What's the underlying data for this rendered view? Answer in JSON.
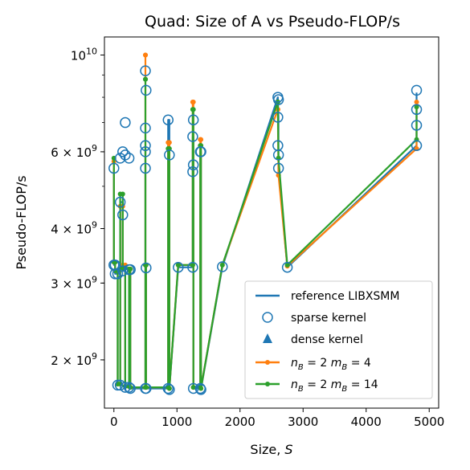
{
  "chart_data": {
    "type": "line",
    "title": "Quad: Size of A vs Pseudo-FLOP/s",
    "xlabel": "Size, S",
    "ylabel": "Pseudo-FLOP/s",
    "xlim": [
      -150,
      5150
    ],
    "ylim": [
      1550000000.0,
      11000000000.0
    ],
    "yscale": "log",
    "x_ticks": [
      0,
      1000,
      2000,
      3000,
      4000,
      5000
    ],
    "x_tick_labels": [
      "0",
      "1000",
      "2000",
      "3000",
      "4000",
      "5000"
    ],
    "y_ticks": [
      2000000000.0,
      3000000000.0,
      4000000000.0,
      6000000000.0,
      10000000000.0
    ],
    "y_tick_labels": [
      "2 × 10^9",
      "3 × 10^9",
      "4 × 10^9",
      "6 × 10^9",
      "10^10"
    ],
    "legend_position": "lower-right",
    "grid": false,
    "series": [
      {
        "name": "reference LIBXSMM",
        "style": "line",
        "color": "#1f77b4",
        "x": [
          0,
          0,
          20,
          20,
          60,
          60,
          100,
          100,
          140,
          140,
          180,
          180,
          240,
          240,
          260,
          260,
          500,
          500,
          500,
          500,
          510,
          510,
          860,
          860,
          880,
          880,
          1020,
          1250,
          1250,
          1260,
          1260,
          1370,
          1370,
          1380,
          1380,
          1720,
          2600,
          2600,
          2610,
          2610,
          2750,
          4800,
          4800
        ],
        "y": [
          5500000000.0,
          3300000000.0,
          3300000000.0,
          3150000000.0,
          3150000000.0,
          1750000000.0,
          1750000000.0,
          4600000000.0,
          4600000000.0,
          3200000000.0,
          3200000000.0,
          1730000000.0,
          1730000000.0,
          3220000000.0,
          3220000000.0,
          1720000000.0,
          1720000000.0,
          6200000000.0,
          6200000000.0,
          3250000000.0,
          3250000000.0,
          1720000000.0,
          1720000000.0,
          7100000000.0,
          7100000000.0,
          1710000000.0,
          3260000000.0,
          3260000000.0,
          6500000000.0,
          6500000000.0,
          1720000000.0,
          1720000000.0,
          6000000000.0,
          6000000000.0,
          1710000000.0,
          3270000000.0,
          8000000000.0,
          8000000000.0,
          7200000000.0,
          5500000000.0,
          3260000000.0,
          6200000000.0,
          8200000000.0
        ]
      },
      {
        "name": "sparse kernel",
        "style": "open-circle",
        "color": "#1f77b4",
        "x": [
          0,
          0,
          20,
          20,
          60,
          60,
          100,
          100,
          100,
          140,
          140,
          140,
          180,
          180,
          180,
          240,
          240,
          240,
          260,
          260,
          500,
          500,
          500,
          500,
          500,
          500,
          510,
          510,
          510,
          860,
          860,
          880,
          880,
          1020,
          1250,
          1250,
          1250,
          1260,
          1260,
          1260,
          1370,
          1370,
          1380,
          1380,
          1720,
          2600,
          2600,
          2600,
          2610,
          2610,
          2610,
          2750,
          4800,
          4800,
          4800,
          4800
        ],
        "y": [
          5500000000.0,
          3300000000.0,
          3300000000.0,
          3150000000.0,
          3150000000.0,
          1750000000.0,
          1750000000.0,
          4600000000.0,
          5800000000.0,
          3200000000.0,
          4300000000.0,
          6000000000.0,
          1730000000.0,
          5900000000.0,
          7000000000.0,
          1730000000.0,
          3220000000.0,
          5800000000.0,
          3220000000.0,
          1720000000.0,
          1720000000.0,
          5500000000.0,
          6000000000.0,
          6200000000.0,
          6800000000.0,
          9200000000.0,
          3250000000.0,
          1720000000.0,
          8300000000.0,
          1720000000.0,
          7100000000.0,
          1710000000.0,
          5900000000.0,
          3260000000.0,
          3260000000.0,
          5400000000.0,
          6500000000.0,
          5600000000.0,
          7100000000.0,
          1720000000.0,
          1720000000.0,
          6000000000.0,
          6000000000.0,
          1710000000.0,
          3270000000.0,
          8000000000.0,
          7200000000.0,
          6200000000.0,
          7900000000.0,
          5500000000.0,
          5900000000.0,
          3260000000.0,
          6200000000.0,
          6900000000.0,
          7500000000.0,
          8300000000.0
        ]
      },
      {
        "name": "dense kernel",
        "style": "triangle",
        "color": "#1f77b4",
        "x": [],
        "y": []
      },
      {
        "name": "n_B = 2 m_B = 4",
        "style": "line-dot",
        "color": "#ff7f0e",
        "x": [
          0,
          0,
          20,
          20,
          60,
          60,
          100,
          100,
          140,
          140,
          180,
          180,
          240,
          240,
          260,
          260,
          500,
          500,
          500,
          500,
          510,
          510,
          860,
          860,
          880,
          880,
          1020,
          1250,
          1250,
          1260,
          1260,
          1370,
          1370,
          1380,
          1380,
          1720,
          2600,
          2600,
          2610,
          2610,
          2750,
          4800,
          4800
        ],
        "y": [
          5700000000.0,
          3350000000.0,
          3350000000.0,
          3200000000.0,
          3200000000.0,
          1760000000.0,
          1760000000.0,
          4500000000.0,
          4500000000.0,
          3300000000.0,
          3300000000.0,
          1740000000.0,
          1740000000.0,
          3230000000.0,
          3230000000.0,
          1730000000.0,
          1730000000.0,
          10000000000.0,
          10000000000.0,
          3300000000.0,
          3300000000.0,
          1730000000.0,
          1730000000.0,
          6300000000.0,
          6300000000.0,
          1720000000.0,
          3300000000.0,
          3300000000.0,
          7800000000.0,
          7800000000.0,
          1730000000.0,
          1730000000.0,
          6400000000.0,
          6400000000.0,
          1720000000.0,
          3300000000.0,
          7500000000.0,
          7500000000.0,
          5300000000.0,
          5300000000.0,
          3280000000.0,
          6100000000.0,
          7800000000.0
        ]
      },
      {
        "name": "n_B = 2 m_B = 14",
        "style": "line-dot",
        "color": "#2ca02c",
        "x": [
          0,
          0,
          20,
          20,
          60,
          60,
          100,
          100,
          140,
          140,
          180,
          180,
          240,
          240,
          260,
          260,
          500,
          500,
          500,
          500,
          510,
          510,
          860,
          860,
          880,
          880,
          1020,
          1250,
          1250,
          1260,
          1260,
          1370,
          1370,
          1380,
          1380,
          1720,
          2600,
          2600,
          2610,
          2610,
          2750,
          4800,
          4800
        ],
        "y": [
          5800000000.0,
          3350000000.0,
          3350000000.0,
          3200000000.0,
          3200000000.0,
          1760000000.0,
          1760000000.0,
          4800000000.0,
          4800000000.0,
          3250000000.0,
          3250000000.0,
          1740000000.0,
          1740000000.0,
          3230000000.0,
          3230000000.0,
          1730000000.0,
          1730000000.0,
          8800000000.0,
          8800000000.0,
          3300000000.0,
          3300000000.0,
          1730000000.0,
          1730000000.0,
          6100000000.0,
          6100000000.0,
          1720000000.0,
          3300000000.0,
          3300000000.0,
          7500000000.0,
          7500000000.0,
          1730000000.0,
          1730000000.0,
          6200000000.0,
          6200000000.0,
          1720000000.0,
          3300000000.0,
          7800000000.0,
          7800000000.0,
          5800000000.0,
          5800000000.0,
          3300000000.0,
          6400000000.0,
          7600000000.0
        ]
      }
    ]
  }
}
